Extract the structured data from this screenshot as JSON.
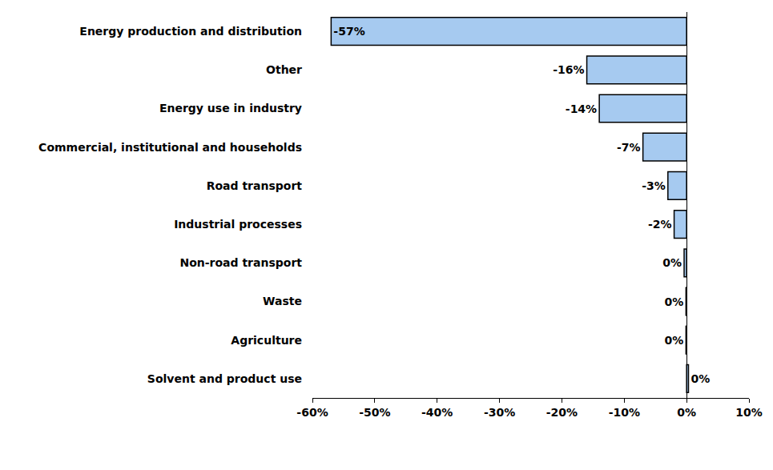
{
  "chart_data": {
    "type": "bar",
    "orientation": "horizontal",
    "categories": [
      "Energy production and distribution",
      "Other",
      "Energy use in industry",
      "Commercial, institutional and households",
      "Road transport",
      "Industrial processes",
      "Non-road transport",
      "Waste",
      "Agriculture",
      "Solvent and product use"
    ],
    "values": [
      -57,
      -16,
      -14,
      -7,
      -3,
      -2,
      -0.4,
      -0.1,
      -0.1,
      0.3
    ],
    "value_labels": [
      "-57%",
      "-16%",
      "-14%",
      "-7%",
      "-3%",
      "-2%",
      "0%",
      "0%",
      "0%",
      "0%"
    ],
    "data_labels": true,
    "color": "#a6caf0",
    "xlim": [
      -60,
      10
    ],
    "xticks": [
      {
        "value": -60,
        "label": "-60%"
      },
      {
        "value": -50,
        "label": "-50%"
      },
      {
        "value": -40,
        "label": "-40%"
      },
      {
        "value": -30,
        "label": "-30%"
      },
      {
        "value": -20,
        "label": "-20%"
      },
      {
        "value": -10,
        "label": "-10%"
      },
      {
        "value": 0,
        "label": "0%"
      },
      {
        "value": 10,
        "label": "10%"
      }
    ],
    "grid": false
  }
}
